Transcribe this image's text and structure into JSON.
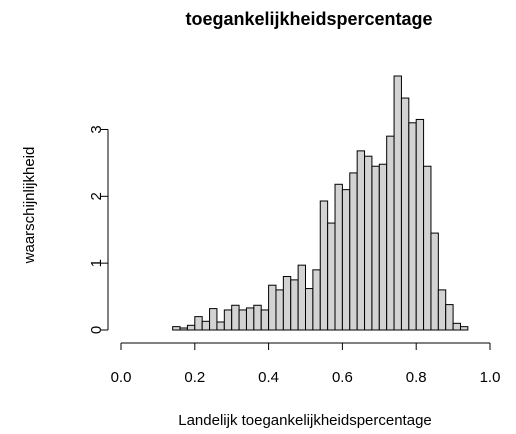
{
  "chart_data": {
    "type": "histogram",
    "title": "toegankelijkheidspercentage",
    "x_label": "Landelijk toegankelijkheidspercentage",
    "y_label": "waarschijnlijkheid",
    "bins": [
      0.14,
      0.16,
      0.18,
      0.2,
      0.22,
      0.24,
      0.26,
      0.28,
      0.3,
      0.32,
      0.34,
      0.36,
      0.38,
      0.4,
      0.42,
      0.44,
      0.46,
      0.48,
      0.5,
      0.52,
      0.54,
      0.56,
      0.58,
      0.6,
      0.62,
      0.64,
      0.66,
      0.68,
      0.7,
      0.72,
      0.74,
      0.76,
      0.78,
      0.8,
      0.82,
      0.84,
      0.86,
      0.88,
      0.9,
      0.92,
      0.94
    ],
    "values": [
      0.05,
      0.03,
      0.07,
      0.2,
      0.13,
      0.32,
      0.12,
      0.3,
      0.37,
      0.3,
      0.33,
      0.37,
      0.3,
      0.67,
      0.6,
      0.8,
      0.75,
      0.97,
      0.62,
      0.9,
      1.93,
      1.6,
      2.18,
      2.1,
      2.35,
      2.68,
      2.6,
      2.45,
      2.48,
      2.9,
      3.8,
      3.47,
      3.1,
      3.15,
      2.45,
      1.45,
      0.6,
      0.38,
      0.1,
      0.05
    ],
    "color": "#d3d3d3",
    "xlim": [
      0,
      1
    ],
    "xticks": [
      {
        "value": 0,
        "label": "0.0"
      },
      0.2,
      0.4,
      0.6,
      0.8,
      {
        "value": 1,
        "label": "1.0"
      }
    ],
    "ylim": [
      0,
      3.8
    ],
    "yticks": [
      0,
      1,
      2,
      3
    ]
  }
}
